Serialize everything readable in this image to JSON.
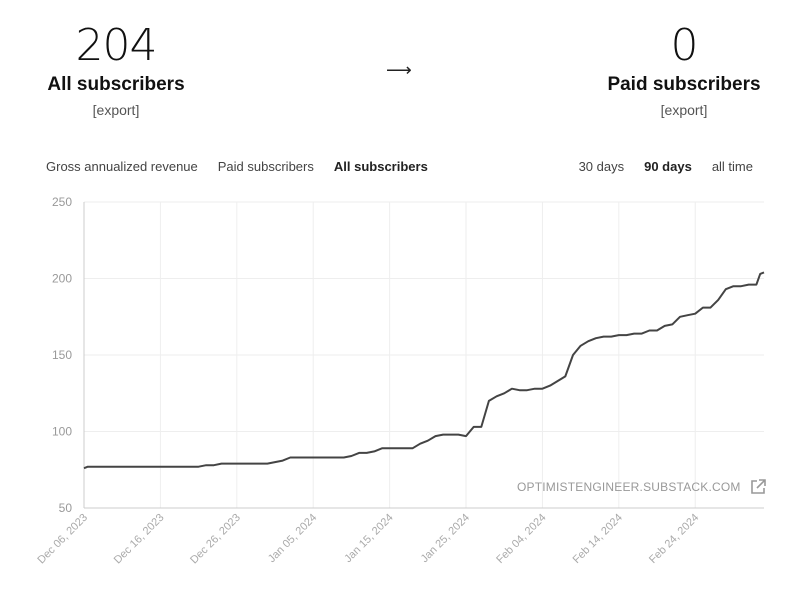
{
  "summary": {
    "all_subscribers": {
      "count": "204",
      "label": "All subscribers",
      "export": "[export]"
    },
    "arrow": "⟶",
    "paid_subscribers": {
      "count": "0",
      "label": "Paid subscribers",
      "export": "[export]"
    }
  },
  "metric_tabs": [
    {
      "label": "Gross annualized revenue",
      "active": false
    },
    {
      "label": "Paid subscribers",
      "active": false
    },
    {
      "label": "All subscribers",
      "active": true
    }
  ],
  "range_tabs": [
    {
      "label": "30 days",
      "active": false
    },
    {
      "label": "90 days",
      "active": true
    },
    {
      "label": "all time",
      "active": false
    }
  ],
  "watermark": {
    "text": "OPTIMISTENGINEER.SUBSTACK.COM",
    "icon": "external-link-icon"
  },
  "colors": {
    "line": "#444444",
    "grid": "#eeeeee",
    "tick_text": "#999999"
  },
  "chart_data": {
    "type": "line",
    "title": "",
    "xlabel": "",
    "ylabel": "",
    "ylim": [
      50,
      250
    ],
    "yticks": [
      50,
      100,
      150,
      200,
      250
    ],
    "xticks": [
      {
        "label": "Dec 06, 2023",
        "day": 0
      },
      {
        "label": "Dec 16, 2023",
        "day": 10
      },
      {
        "label": "Dec 26, 2023",
        "day": 20
      },
      {
        "label": "Jan 05, 2024",
        "day": 30
      },
      {
        "label": "Jan 15, 2024",
        "day": 40
      },
      {
        "label": "Jan 25, 2024",
        "day": 50
      },
      {
        "label": "Feb 04, 2024",
        "day": 60
      },
      {
        "label": "Feb 14, 2024",
        "day": 70
      },
      {
        "label": "Feb 24, 2024",
        "day": 80
      }
    ],
    "x_end_day": 89,
    "grid": true,
    "series": [
      {
        "points": [
          [
            0,
            76
          ],
          [
            0.5,
            77
          ],
          [
            1,
            77
          ],
          [
            14,
            77
          ],
          [
            15,
            77
          ],
          [
            16,
            78
          ],
          [
            17,
            78
          ],
          [
            18,
            79
          ],
          [
            24,
            79
          ],
          [
            25,
            80
          ],
          [
            26,
            81
          ],
          [
            27,
            83
          ],
          [
            34,
            83
          ],
          [
            35,
            84
          ],
          [
            36,
            86
          ],
          [
            37,
            86
          ],
          [
            38,
            87
          ],
          [
            39,
            89
          ],
          [
            42,
            89
          ],
          [
            43,
            89
          ],
          [
            44,
            92
          ],
          [
            45,
            94
          ],
          [
            46,
            97
          ],
          [
            47,
            98
          ],
          [
            49,
            98
          ],
          [
            50,
            97
          ],
          [
            51,
            103
          ],
          [
            52,
            103
          ],
          [
            53,
            120
          ],
          [
            54,
            123
          ],
          [
            55,
            125
          ],
          [
            56,
            128
          ],
          [
            57,
            127
          ],
          [
            58,
            127
          ],
          [
            59,
            128
          ],
          [
            60,
            128
          ],
          [
            61,
            130
          ],
          [
            62,
            133
          ],
          [
            63,
            136
          ],
          [
            64,
            150
          ],
          [
            65,
            156
          ],
          [
            66,
            159
          ],
          [
            67,
            161
          ],
          [
            68,
            162
          ],
          [
            69,
            162
          ],
          [
            70,
            163
          ],
          [
            71,
            163
          ],
          [
            72,
            164
          ],
          [
            73,
            164
          ],
          [
            74,
            166
          ],
          [
            75,
            166
          ],
          [
            76,
            169
          ],
          [
            77,
            170
          ],
          [
            78,
            175
          ],
          [
            79,
            176
          ],
          [
            80,
            177
          ],
          [
            81,
            181
          ],
          [
            82,
            181
          ],
          [
            83,
            186
          ],
          [
            84,
            193
          ],
          [
            85,
            195
          ],
          [
            86,
            195
          ],
          [
            87,
            196
          ],
          [
            88,
            196
          ],
          [
            88.5,
            203
          ],
          [
            89,
            204
          ]
        ]
      }
    ]
  }
}
